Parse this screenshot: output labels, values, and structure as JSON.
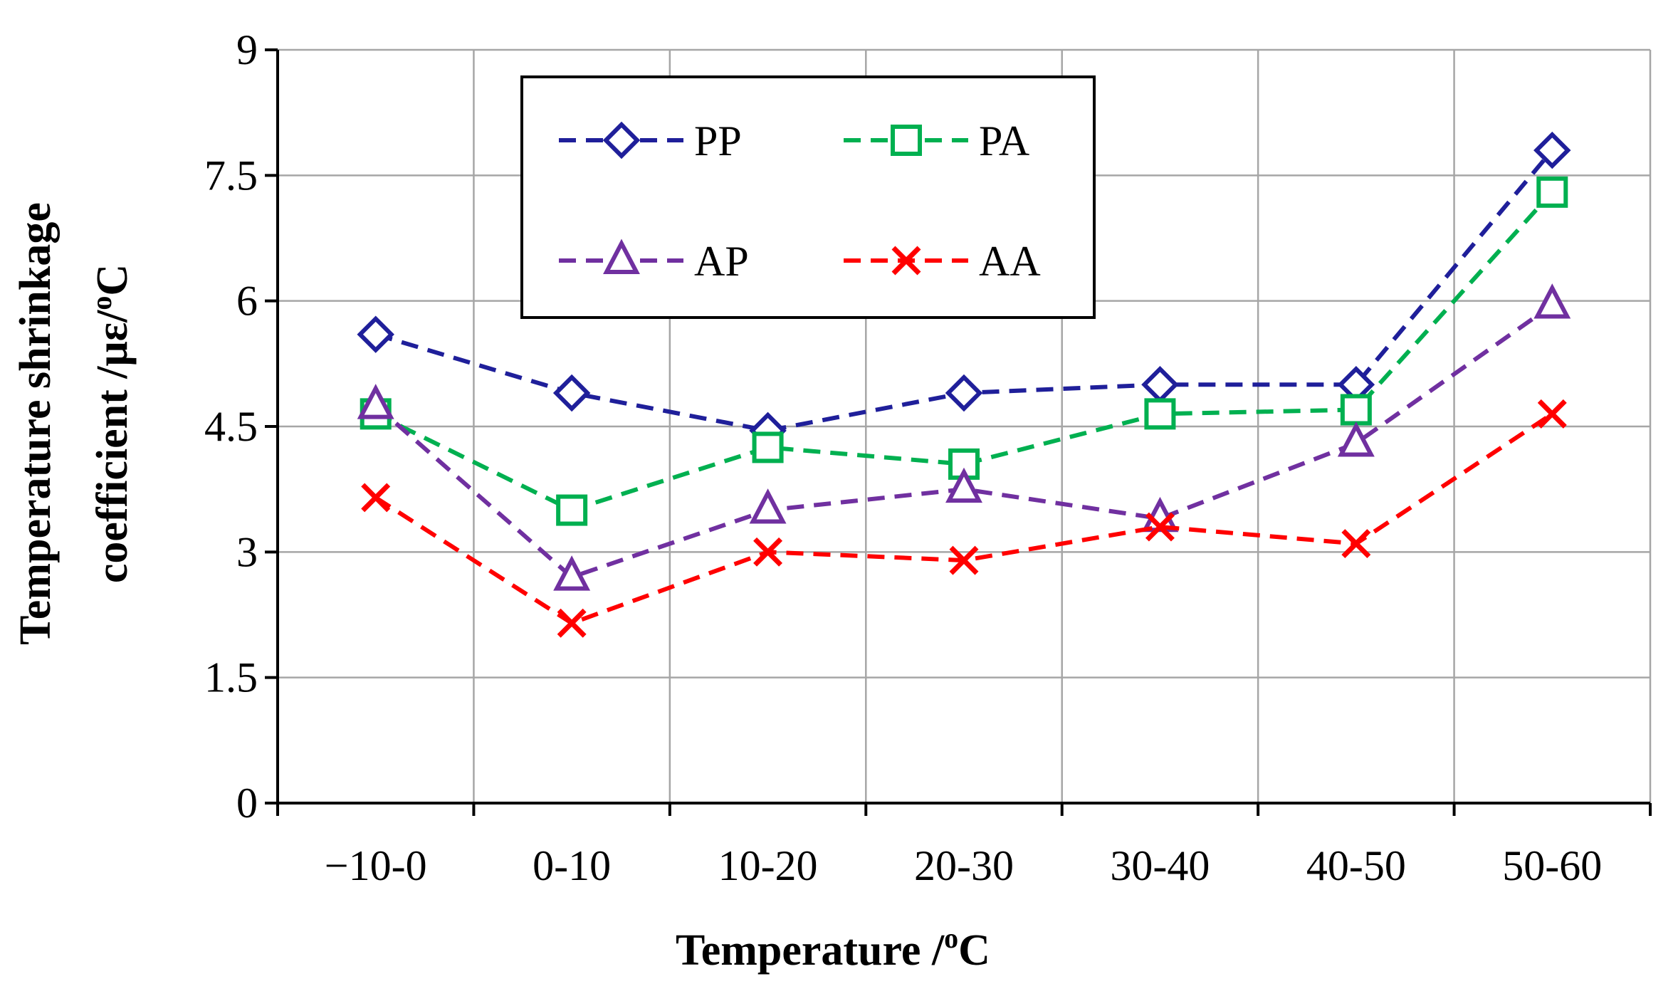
{
  "chart_data": {
    "type": "line",
    "title": "",
    "xlabel": "Temperature /",
    "xlabel_unit_sup": "o",
    "xlabel_unit": "C",
    "ylabel_line1": "Temperature shrinkage",
    "ylabel_line2_prefix": "coefficient /με/",
    "ylabel_line2_sup": "o",
    "ylabel_line2_suffix": "C",
    "categories": [
      "−10-0",
      "0-10",
      "10-20",
      "20-30",
      "30-40",
      "40-50",
      "50-60"
    ],
    "ylim": [
      0,
      9
    ],
    "yticks": [
      0,
      1.5,
      3,
      4.5,
      6,
      7.5,
      9
    ],
    "ytick_labels": [
      "0",
      "1.5",
      "3",
      "4.5",
      "6",
      "7.5",
      "9"
    ],
    "grid": true,
    "legend_position": "top-left inside",
    "series": [
      {
        "name": "PP",
        "color": "#1F1F9A",
        "marker": "diamond",
        "values": [
          5.6,
          4.9,
          4.45,
          4.9,
          5.0,
          5.0,
          7.8
        ]
      },
      {
        "name": "PA",
        "color": "#00B050",
        "marker": "square",
        "values": [
          4.65,
          3.5,
          4.25,
          4.05,
          4.65,
          4.7,
          7.3
        ]
      },
      {
        "name": "AP",
        "color": "#7030A0",
        "marker": "triangle",
        "values": [
          4.75,
          2.7,
          3.5,
          3.75,
          3.4,
          4.3,
          5.95
        ]
      },
      {
        "name": "AA",
        "color": "#FF0000",
        "marker": "x",
        "values": [
          3.65,
          2.15,
          3.0,
          2.9,
          3.3,
          3.1,
          4.65
        ]
      }
    ]
  }
}
